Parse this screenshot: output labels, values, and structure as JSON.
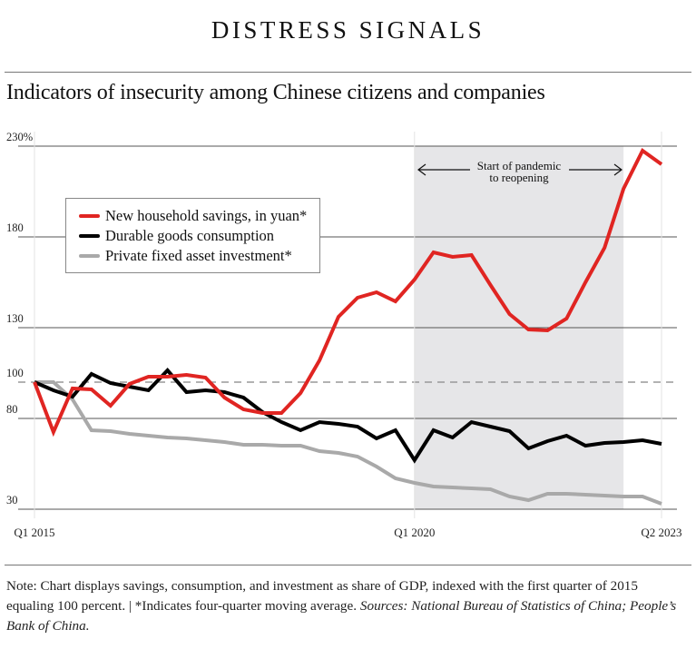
{
  "header": {
    "kicker": "DISTRESS SIGNALS",
    "subtitle": "Indicators of insecurity among Chinese citizens and companies"
  },
  "footer": {
    "note": "Note: Chart displays savings, consumption, and investment as share of GDP, indexed with the first quarter of 2015 equaling 100 percent. | *Indicates four-quarter moving average.",
    "sources": "Sources: National Bureau of Statistics of China; People’s Bank of China."
  },
  "colors": {
    "savings": "#e02522",
    "durable": "#000000",
    "investment": "#a9a9a9",
    "shade": "#e6e6e8",
    "grid": "#555555",
    "reference": "#999999"
  },
  "chart_data": {
    "type": "line",
    "title": "Indicators of insecurity among Chinese citizens and companies",
    "xlabel": "",
    "ylabel": "",
    "ylim": [
      30,
      230
    ],
    "xlim": [
      0,
      33
    ],
    "x_unit": "quarters since Q1 2015",
    "y_ticks": [
      30,
      80,
      100,
      130,
      180,
      230
    ],
    "y_tick_labels": [
      "30",
      "80",
      "100",
      "130",
      "180",
      "230%"
    ],
    "x_ticks": [
      0,
      20,
      33
    ],
    "x_tick_labels": [
      "Q1 2015",
      "Q1 2020",
      "Q2 2023"
    ],
    "reference_line": 100,
    "grid": true,
    "legend_placement": "upper-left",
    "annotation": {
      "text_line1": "Start of pandemic",
      "text_line2": "to reopening",
      "x_start": 20,
      "x_end": 31
    },
    "series": [
      {
        "name": "New household savings, in yuan*",
        "color_key": "savings",
        "values": [
          100,
          72.5,
          96.5,
          96,
          87,
          99,
          103,
          103,
          104,
          102.5,
          91.5,
          85,
          83,
          83,
          94,
          112,
          136,
          146.5,
          149.5,
          144.5,
          156.5,
          171.5,
          169,
          170,
          153.5,
          137.5,
          129,
          128.5,
          135,
          155,
          174,
          206.5,
          227.5,
          220
        ]
      },
      {
        "name": "Durable goods consumption",
        "color_key": "durable",
        "values": [
          100,
          95.5,
          92,
          104.5,
          99.5,
          97.5,
          95.5,
          106.5,
          94.5,
          95.5,
          94.5,
          91.5,
          83.5,
          78,
          73.5,
          78,
          77,
          75.5,
          69,
          73.5,
          57,
          73.5,
          69.5,
          78,
          75.5,
          73,
          63.5,
          67.5,
          70.5,
          65,
          66.5,
          67,
          68,
          66
        ]
      },
      {
        "name": "Private fixed asset investment*",
        "color_key": "investment",
        "values": [
          100,
          100,
          90.5,
          73.5,
          73,
          71.5,
          70.5,
          69.5,
          69,
          68,
          67,
          65.5,
          65.5,
          65,
          65,
          62,
          61,
          59,
          53.5,
          47,
          44.5,
          42.5,
          42,
          41.5,
          41,
          37,
          35,
          38.5,
          38.5,
          38,
          37.5,
          37,
          37,
          33
        ]
      }
    ]
  }
}
